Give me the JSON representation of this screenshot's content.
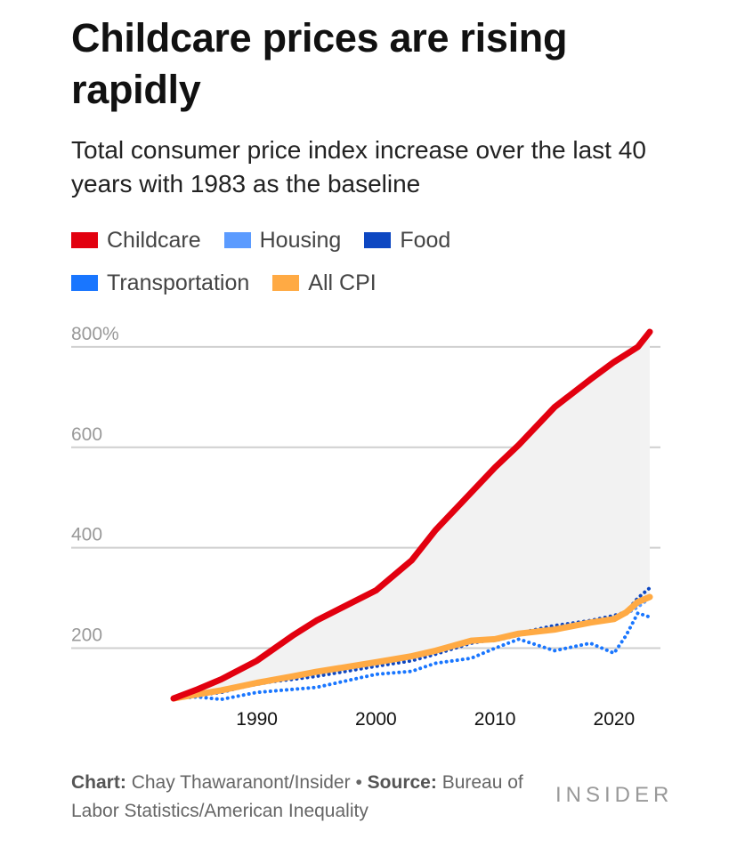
{
  "header": {
    "title": "Childcare prices are rising rapidly",
    "subtitle": "Total consumer price index increase over the last 40 years with 1983 as the baseline"
  },
  "legend": [
    {
      "label": "Childcare",
      "color": "#e2000f"
    },
    {
      "label": "Housing",
      "color": "#5b9bff"
    },
    {
      "label": "Food",
      "color": "#0d47c2"
    },
    {
      "label": "Transportation",
      "color": "#1976ff"
    },
    {
      "label": "All CPI",
      "color": "#ffaa44"
    }
  ],
  "footer": {
    "chart_label": "Chart:",
    "chart_author": "Chay Thawaranont/Insider",
    "bullet": "•",
    "source_label": "Source:",
    "source_text": "Bureau of Labor Statistics/American Inequality",
    "brand": "INSIDER"
  },
  "chart_data": {
    "type": "line",
    "title": "Childcare prices are rising rapidly",
    "subtitle": "Total consumer price index increase over the last 40 years with 1983 as the baseline",
    "xlabel": "",
    "ylabel": "",
    "x_ticks": [
      1990,
      2000,
      2010,
      2020
    ],
    "y_ticks": [
      {
        "value": 200,
        "label": "200"
      },
      {
        "value": 400,
        "label": "400"
      },
      {
        "value": 600,
        "label": "600"
      },
      {
        "value": 800,
        "label": "800%"
      }
    ],
    "xlim": [
      1983,
      2023
    ],
    "ylim": [
      100,
      830
    ],
    "grid": "horizontal",
    "legend_position": "top",
    "shade_between": [
      "Childcare",
      "All CPI"
    ],
    "x": [
      1983,
      1985,
      1987,
      1990,
      1993,
      1995,
      2000,
      2003,
      2005,
      2008,
      2010,
      2012,
      2015,
      2018,
      2020,
      2021,
      2022,
      2023
    ],
    "series": [
      {
        "name": "Childcare",
        "color": "#e2000f",
        "style": "solid",
        "width": 7,
        "values": [
          100,
          118,
          138,
          175,
          225,
          255,
          315,
          375,
          435,
          510,
          560,
          605,
          680,
          735,
          770,
          785,
          800,
          830
        ]
      },
      {
        "name": "Housing",
        "color": "#5b9bff",
        "style": "dotted",
        "width": 4,
        "values": [
          100,
          107,
          114,
          128,
          140,
          147,
          166,
          180,
          192,
          215,
          215,
          226,
          238,
          253,
          262,
          268,
          282,
          300
        ]
      },
      {
        "name": "Food",
        "color": "#0d47c2",
        "style": "dotted",
        "width": 4,
        "values": [
          100,
          106,
          112,
          130,
          138,
          144,
          164,
          175,
          188,
          210,
          218,
          230,
          245,
          255,
          265,
          272,
          300,
          320
        ]
      },
      {
        "name": "Transportation",
        "color": "#1976ff",
        "style": "dotted",
        "width": 4,
        "values": [
          100,
          103,
          98,
          112,
          118,
          122,
          148,
          154,
          170,
          180,
          200,
          218,
          195,
          210,
          190,
          225,
          270,
          262
        ]
      },
      {
        "name": "All CPI",
        "color": "#ffaa44",
        "style": "solid",
        "width": 7,
        "values": [
          100,
          108,
          116,
          131,
          144,
          153,
          172,
          184,
          195,
          215,
          218,
          229,
          237,
          251,
          258,
          271,
          292,
          302
        ]
      }
    ]
  }
}
